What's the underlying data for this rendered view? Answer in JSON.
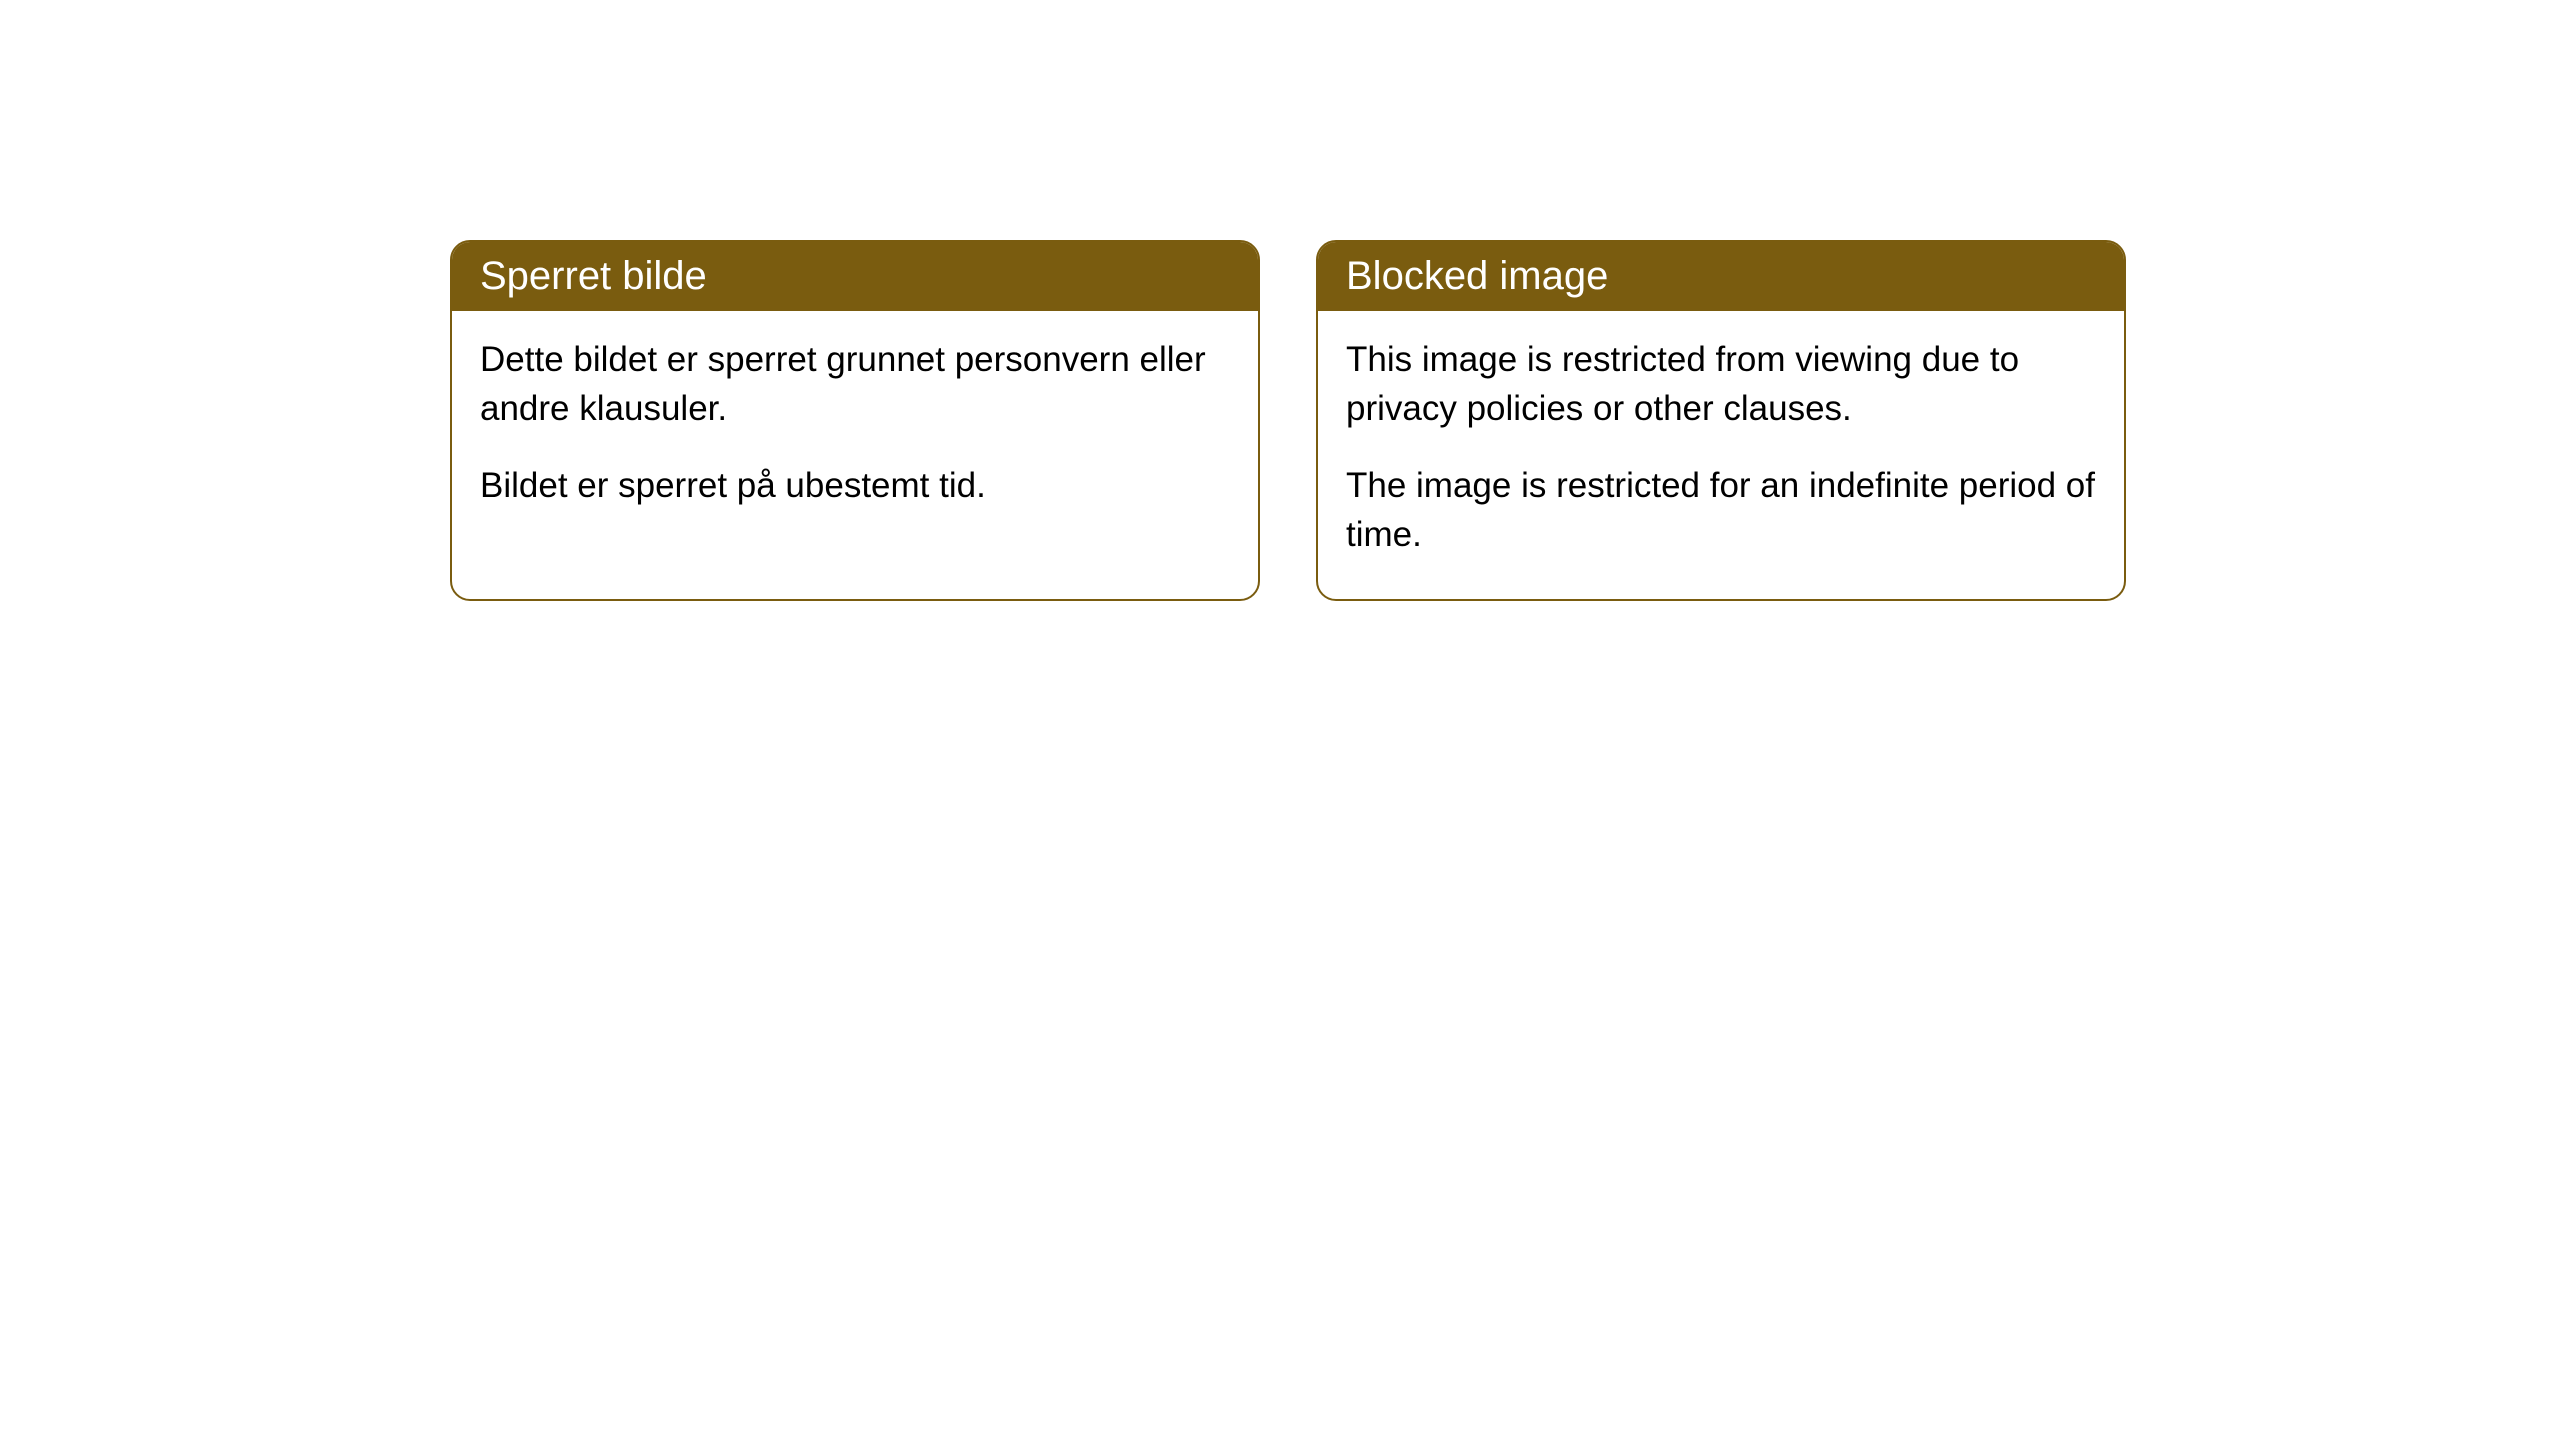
{
  "cards": [
    {
      "title": "Sperret bilde",
      "paragraph1": "Dette bildet er sperret grunnet personvern eller andre klausuler.",
      "paragraph2": "Bildet er sperret på ubestemt tid."
    },
    {
      "title": "Blocked image",
      "paragraph1": "This image is restricted from viewing due to privacy policies or other clauses.",
      "paragraph2": "The image is restricted for an indefinite period of time."
    }
  ],
  "styling": {
    "header_bg_color": "#7a5c0f",
    "header_text_color": "#ffffff",
    "border_color": "#7a5c0f",
    "border_radius": "20px",
    "body_bg_color": "#ffffff",
    "body_text_color": "#000000",
    "title_fontsize": 40,
    "body_fontsize": 35
  }
}
